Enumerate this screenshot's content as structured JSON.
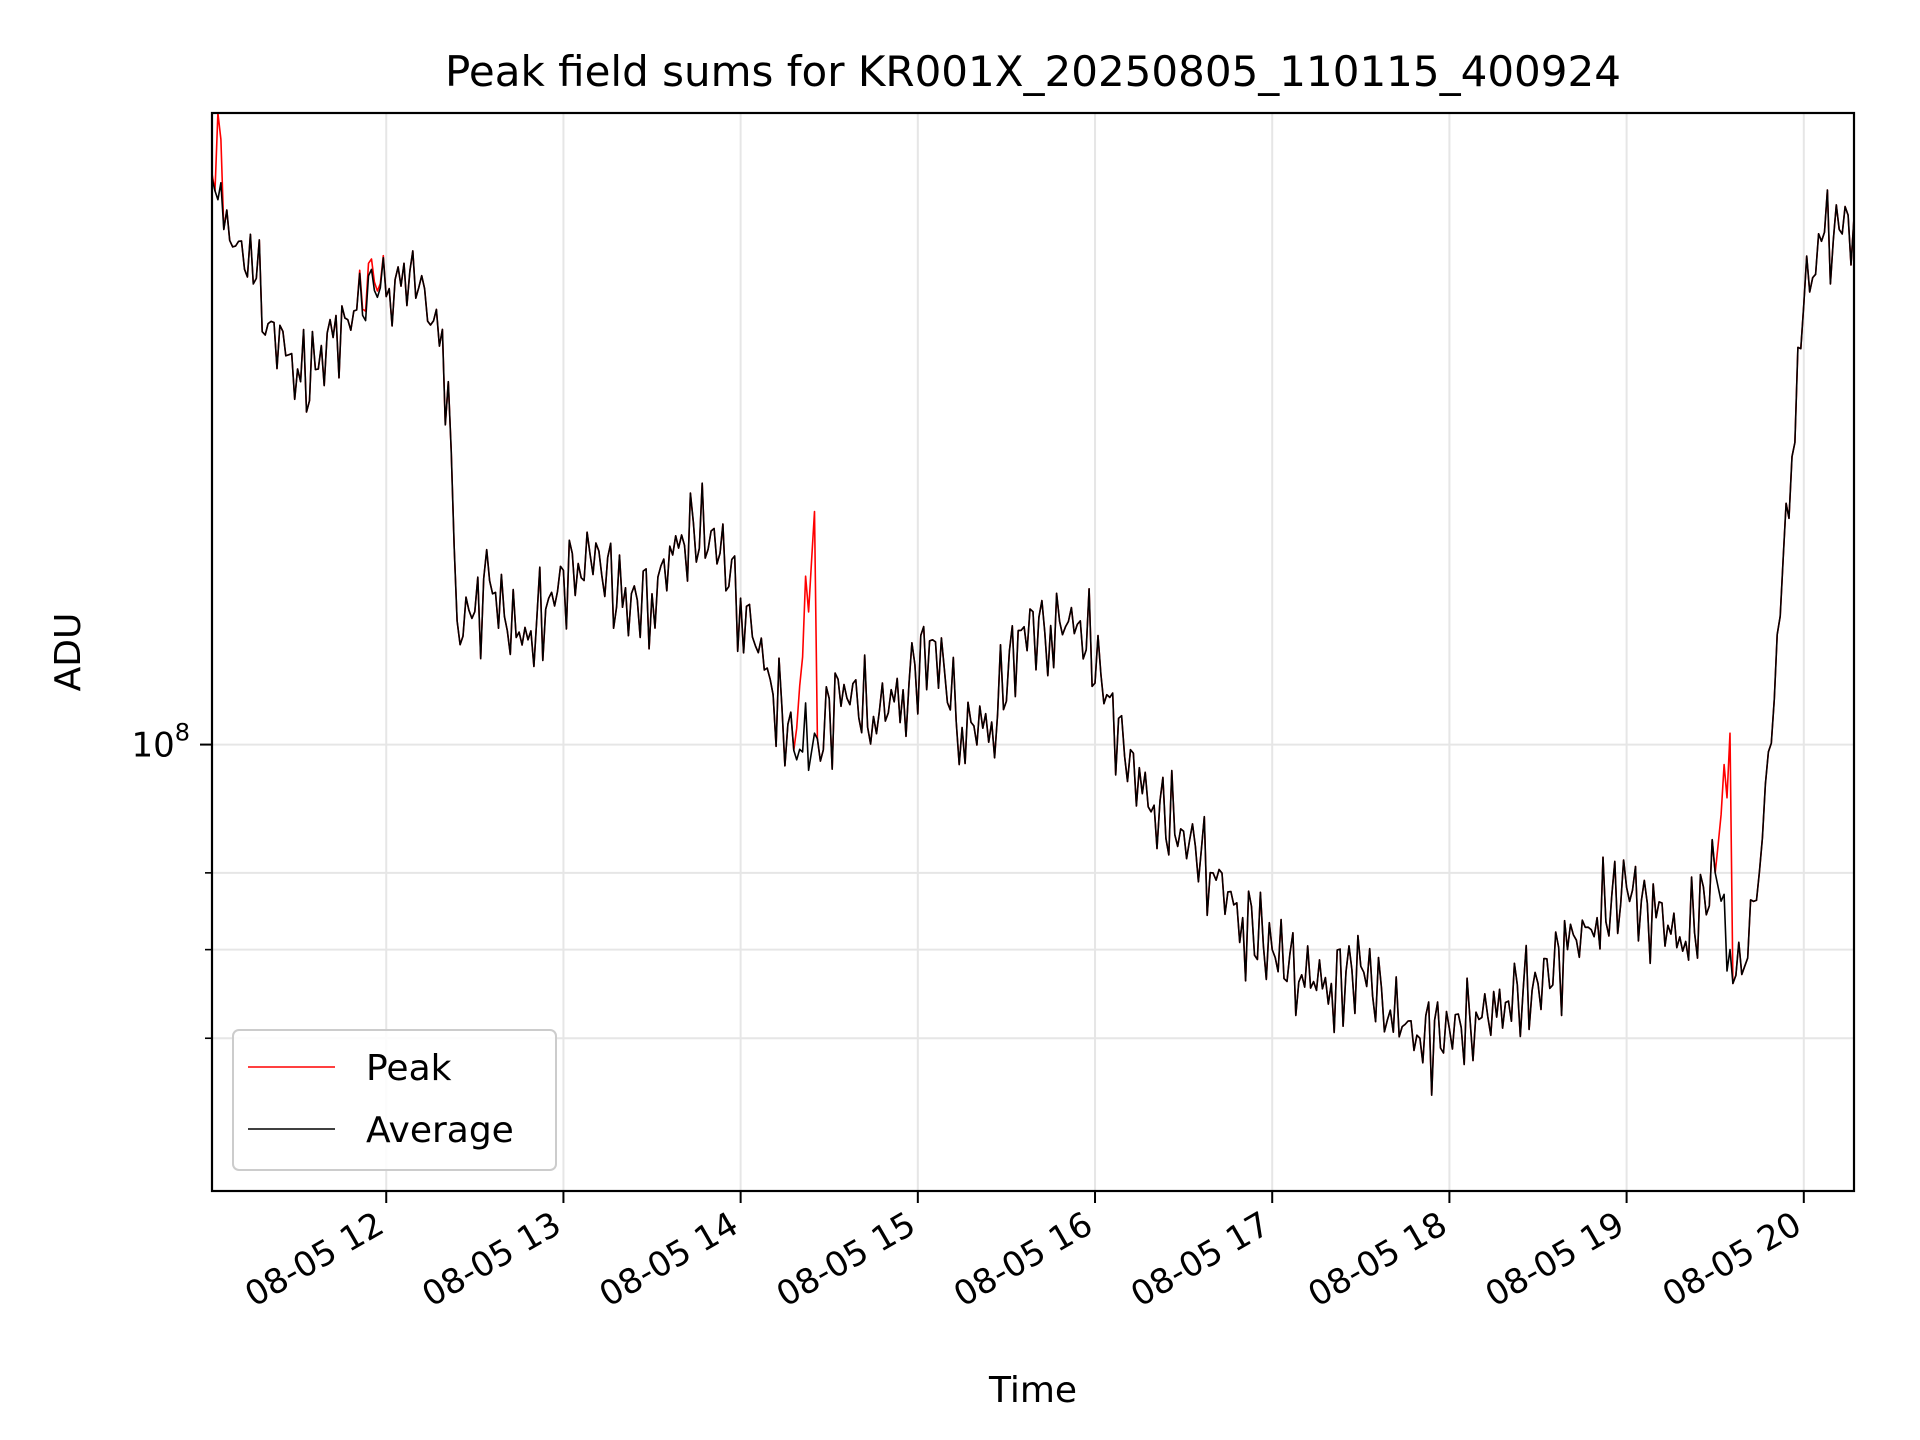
{
  "chart_data": {
    "type": "line",
    "title": "Peak field sums for KR001X_20250805_110115_400924",
    "xlabel": "Time",
    "ylabel": "ADU",
    "y_scale": "log",
    "grid": true,
    "legend_position": "lower-left",
    "xlim": [
      "2025-08-05 11:01",
      "2025-08-05 20:17"
    ],
    "ylim": [
      46000000,
      300000000
    ],
    "x_ticks": [
      "08-05 12",
      "08-05 13",
      "08-05 14",
      "08-05 15",
      "08-05 16",
      "08-05 17",
      "08-05 18",
      "08-05 19",
      "08-05 20"
    ],
    "y_tick_major": {
      "value": 100000000,
      "base": "10",
      "exponent": "8"
    },
    "y_ticks_minor": [
      60000000,
      70000000,
      80000000
    ],
    "series": [
      {
        "name": "Peak",
        "color": "#ff0000",
        "points": [
          [
            "2025-08-05 11:01",
            270000000
          ],
          [
            "2025-08-05 11:02",
            262000000
          ],
          [
            "2025-08-05 11:03",
            300000000
          ],
          [
            "2025-08-05 11:05",
            245000000
          ],
          [
            "2025-08-05 11:10",
            240000000
          ],
          [
            "2025-08-05 11:16",
            225000000
          ],
          [
            "2025-08-05 11:20",
            208000000
          ],
          [
            "2025-08-05 11:27",
            197000000
          ],
          [
            "2025-08-05 11:31",
            188000000
          ],
          [
            "2025-08-05 11:36",
            192000000
          ],
          [
            "2025-08-05 11:42",
            203000000
          ],
          [
            "2025-08-05 11:50",
            213000000
          ],
          [
            "2025-08-05 11:54",
            231000000
          ],
          [
            "2025-08-05 12:00",
            218000000
          ],
          [
            "2025-08-05 12:05",
            222000000
          ],
          [
            "2025-08-05 12:08",
            228000000
          ],
          [
            "2025-08-05 12:13",
            221000000
          ],
          [
            "2025-08-05 12:18",
            200000000
          ],
          [
            "2025-08-05 12:21",
            188000000
          ],
          [
            "2025-08-05 12:24",
            124000000
          ],
          [
            "2025-08-05 12:30",
            126000000
          ],
          [
            "2025-08-05 12:35",
            133000000
          ],
          [
            "2025-08-05 12:40",
            125000000
          ],
          [
            "2025-08-05 12:48",
            120000000
          ],
          [
            "2025-08-05 12:55",
            129000000
          ],
          [
            "2025-08-05 13:05",
            137000000
          ],
          [
            "2025-08-05 13:12",
            140000000
          ],
          [
            "2025-08-05 13:20",
            127000000
          ],
          [
            "2025-08-05 13:30",
            130000000
          ],
          [
            "2025-08-05 13:40",
            144000000
          ],
          [
            "2025-08-05 13:50",
            145000000
          ],
          [
            "2025-08-05 14:00",
            129000000
          ],
          [
            "2025-08-05 14:10",
            112000000
          ],
          [
            "2025-08-05 14:18",
            99000000
          ],
          [
            "2025-08-05 14:25",
            150000000
          ],
          [
            "2025-08-05 14:26",
            101000000
          ],
          [
            "2025-08-05 14:35",
            111000000
          ],
          [
            "2025-08-05 14:45",
            105000000
          ],
          [
            "2025-08-05 14:55",
            110000000
          ],
          [
            "2025-08-05 15:05",
            120000000
          ],
          [
            "2025-08-05 15:15",
            103000000
          ],
          [
            "2025-08-05 15:25",
            104000000
          ],
          [
            "2025-08-05 15:35",
            122000000
          ],
          [
            "2025-08-05 15:45",
            123000000
          ],
          [
            "2025-08-05 15:55",
            124000000
          ],
          [
            "2025-08-05 16:02",
            113000000
          ],
          [
            "2025-08-05 16:10",
            98000000
          ],
          [
            "2025-08-05 16:20",
            90000000
          ],
          [
            "2025-08-05 16:30",
            86000000
          ],
          [
            "2025-08-05 16:40",
            80000000
          ],
          [
            "2025-08-05 16:50",
            74000000
          ],
          [
            "2025-08-05 17:00",
            70000000
          ],
          [
            "2025-08-05 17:10",
            67000000
          ],
          [
            "2025-08-05 17:20",
            66000000
          ],
          [
            "2025-08-05 17:30",
            68000000
          ],
          [
            "2025-08-05 17:40",
            63000000
          ],
          [
            "2025-08-05 17:50",
            60000000
          ],
          [
            "2025-08-05 18:00",
            61000000
          ],
          [
            "2025-08-05 18:10",
            62000000
          ],
          [
            "2025-08-05 18:20",
            64000000
          ],
          [
            "2025-08-05 18:30",
            66000000
          ],
          [
            "2025-08-05 18:40",
            70000000
          ],
          [
            "2025-08-05 18:50",
            74000000
          ],
          [
            "2025-08-05 19:00",
            78000000
          ],
          [
            "2025-08-05 19:10",
            74000000
          ],
          [
            "2025-08-05 19:20",
            71000000
          ],
          [
            "2025-08-05 19:30",
            80000000
          ],
          [
            "2025-08-05 19:35",
            102000000
          ],
          [
            "2025-08-05 19:36",
            66000000
          ],
          [
            "2025-08-05 19:40",
            68000000
          ],
          [
            "2025-08-05 19:46",
            85000000
          ],
          [
            "2025-08-05 19:52",
            125000000
          ],
          [
            "2025-08-05 19:56",
            165000000
          ],
          [
            "2025-08-05 20:00",
            215000000
          ],
          [
            "2025-08-05 20:06",
            240000000
          ],
          [
            "2025-08-05 20:12",
            245000000
          ],
          [
            "2025-08-05 20:17",
            250000000
          ]
        ]
      },
      {
        "name": "Average",
        "color": "#000000",
        "points": [
          [
            "2025-08-05 11:01",
            268000000
          ],
          [
            "2025-08-05 11:02",
            262000000
          ],
          [
            "2025-08-05 11:03",
            258000000
          ],
          [
            "2025-08-05 11:05",
            245000000
          ],
          [
            "2025-08-05 11:10",
            240000000
          ],
          [
            "2025-08-05 11:16",
            225000000
          ],
          [
            "2025-08-05 11:20",
            208000000
          ],
          [
            "2025-08-05 11:27",
            197000000
          ],
          [
            "2025-08-05 11:31",
            188000000
          ],
          [
            "2025-08-05 11:36",
            192000000
          ],
          [
            "2025-08-05 11:42",
            203000000
          ],
          [
            "2025-08-05 11:50",
            213000000
          ],
          [
            "2025-08-05 11:54",
            226000000
          ],
          [
            "2025-08-05 12:00",
            218000000
          ],
          [
            "2025-08-05 12:05",
            222000000
          ],
          [
            "2025-08-05 12:08",
            228000000
          ],
          [
            "2025-08-05 12:13",
            221000000
          ],
          [
            "2025-08-05 12:18",
            200000000
          ],
          [
            "2025-08-05 12:21",
            188000000
          ],
          [
            "2025-08-05 12:24",
            124000000
          ],
          [
            "2025-08-05 12:30",
            126000000
          ],
          [
            "2025-08-05 12:35",
            133000000
          ],
          [
            "2025-08-05 12:40",
            125000000
          ],
          [
            "2025-08-05 12:48",
            120000000
          ],
          [
            "2025-08-05 12:55",
            129000000
          ],
          [
            "2025-08-05 13:05",
            137000000
          ],
          [
            "2025-08-05 13:12",
            140000000
          ],
          [
            "2025-08-05 13:20",
            127000000
          ],
          [
            "2025-08-05 13:30",
            130000000
          ],
          [
            "2025-08-05 13:40",
            144000000
          ],
          [
            "2025-08-05 13:50",
            145000000
          ],
          [
            "2025-08-05 14:00",
            129000000
          ],
          [
            "2025-08-05 14:10",
            112000000
          ],
          [
            "2025-08-05 14:18",
            99000000
          ],
          [
            "2025-08-05 14:25",
            102000000
          ],
          [
            "2025-08-05 14:26",
            101000000
          ],
          [
            "2025-08-05 14:35",
            111000000
          ],
          [
            "2025-08-05 14:45",
            105000000
          ],
          [
            "2025-08-05 14:55",
            110000000
          ],
          [
            "2025-08-05 15:05",
            120000000
          ],
          [
            "2025-08-05 15:15",
            103000000
          ],
          [
            "2025-08-05 15:25",
            104000000
          ],
          [
            "2025-08-05 15:35",
            122000000
          ],
          [
            "2025-08-05 15:45",
            123000000
          ],
          [
            "2025-08-05 15:55",
            124000000
          ],
          [
            "2025-08-05 16:02",
            113000000
          ],
          [
            "2025-08-05 16:10",
            98000000
          ],
          [
            "2025-08-05 16:20",
            90000000
          ],
          [
            "2025-08-05 16:30",
            86000000
          ],
          [
            "2025-08-05 16:40",
            80000000
          ],
          [
            "2025-08-05 16:50",
            74000000
          ],
          [
            "2025-08-05 17:00",
            70000000
          ],
          [
            "2025-08-05 17:10",
            67000000
          ],
          [
            "2025-08-05 17:20",
            66000000
          ],
          [
            "2025-08-05 17:30",
            68000000
          ],
          [
            "2025-08-05 17:40",
            63000000
          ],
          [
            "2025-08-05 17:50",
            60000000
          ],
          [
            "2025-08-05 18:00",
            61000000
          ],
          [
            "2025-08-05 18:10",
            62000000
          ],
          [
            "2025-08-05 18:20",
            64000000
          ],
          [
            "2025-08-05 18:30",
            66000000
          ],
          [
            "2025-08-05 18:40",
            70000000
          ],
          [
            "2025-08-05 18:50",
            74000000
          ],
          [
            "2025-08-05 19:00",
            78000000
          ],
          [
            "2025-08-05 19:10",
            74000000
          ],
          [
            "2025-08-05 19:20",
            71000000
          ],
          [
            "2025-08-05 19:30",
            80000000
          ],
          [
            "2025-08-05 19:35",
            70000000
          ],
          [
            "2025-08-05 19:36",
            66000000
          ],
          [
            "2025-08-05 19:40",
            68000000
          ],
          [
            "2025-08-05 19:46",
            85000000
          ],
          [
            "2025-08-05 19:52",
            125000000
          ],
          [
            "2025-08-05 19:56",
            165000000
          ],
          [
            "2025-08-05 20:00",
            215000000
          ],
          [
            "2025-08-05 20:06",
            240000000
          ],
          [
            "2025-08-05 20:12",
            245000000
          ],
          [
            "2025-08-05 20:17",
            250000000
          ]
        ]
      }
    ]
  }
}
